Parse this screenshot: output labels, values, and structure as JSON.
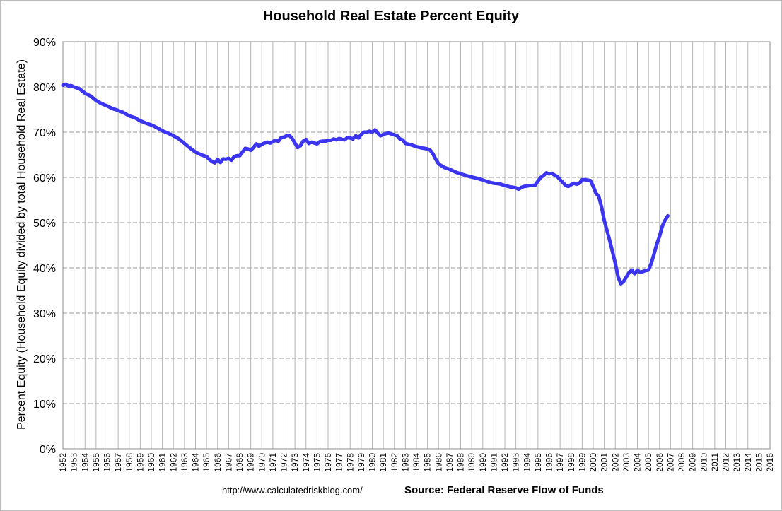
{
  "chart_data": {
    "type": "line",
    "title": "Household Real Estate Percent Equity",
    "ylabel": "Percent Equity (Household Equity divided by total Household Real Estate)",
    "xlabel": "",
    "ylim": [
      0,
      90
    ],
    "xlim": [
      1952,
      2016
    ],
    "y_ticks": [
      "0%",
      "10%",
      "20%",
      "30%",
      "40%",
      "50%",
      "60%",
      "70%",
      "80%",
      "90%"
    ],
    "x_ticks": [
      "1952",
      "1953",
      "1954",
      "1955",
      "1956",
      "1957",
      "1958",
      "1959",
      "1960",
      "1961",
      "1962",
      "1963",
      "1964",
      "1965",
      "1966",
      "1967",
      "1968",
      "1969",
      "1970",
      "1971",
      "1972",
      "1973",
      "1974",
      "1975",
      "1976",
      "1977",
      "1978",
      "1979",
      "1980",
      "1981",
      "1982",
      "1983",
      "1984",
      "1985",
      "1986",
      "1987",
      "1988",
      "1989",
      "1990",
      "1991",
      "1992",
      "1993",
      "1994",
      "1995",
      "1996",
      "1997",
      "1998",
      "1999",
      "2000",
      "2001",
      "2002",
      "2003",
      "2004",
      "2005",
      "2006",
      "2007",
      "2008",
      "2009",
      "2010",
      "2011",
      "2012",
      "2013",
      "2014",
      "2015",
      "2016"
    ],
    "grid": "dashed",
    "series": [
      {
        "color": "#3b35f0",
        "points": [
          [
            1952.0,
            80.4
          ],
          [
            1952.25,
            80.6
          ],
          [
            1952.5,
            80.2
          ],
          [
            1952.75,
            80.3
          ],
          [
            1953.0,
            80.0
          ],
          [
            1953.5,
            79.6
          ],
          [
            1954.0,
            78.6
          ],
          [
            1954.5,
            78.0
          ],
          [
            1955.0,
            77.0
          ],
          [
            1955.5,
            76.3
          ],
          [
            1956.0,
            75.8
          ],
          [
            1956.5,
            75.2
          ],
          [
            1957.0,
            74.8
          ],
          [
            1957.5,
            74.3
          ],
          [
            1958.0,
            73.6
          ],
          [
            1958.5,
            73.2
          ],
          [
            1959.0,
            72.5
          ],
          [
            1959.5,
            72.0
          ],
          [
            1960.0,
            71.6
          ],
          [
            1960.5,
            71.0
          ],
          [
            1961.0,
            70.3
          ],
          [
            1961.5,
            69.8
          ],
          [
            1962.0,
            69.2
          ],
          [
            1962.5,
            68.5
          ],
          [
            1963.0,
            67.5
          ],
          [
            1963.5,
            66.5
          ],
          [
            1964.0,
            65.6
          ],
          [
            1964.5,
            65.0
          ],
          [
            1965.0,
            64.6
          ],
          [
            1965.25,
            64.0
          ],
          [
            1965.5,
            63.5
          ],
          [
            1965.75,
            63.2
          ],
          [
            1966.0,
            64.0
          ],
          [
            1966.25,
            63.3
          ],
          [
            1966.5,
            64.1
          ],
          [
            1966.75,
            64.0
          ],
          [
            1967.0,
            64.2
          ],
          [
            1967.25,
            63.8
          ],
          [
            1967.5,
            64.6
          ],
          [
            1967.75,
            64.8
          ],
          [
            1968.0,
            64.8
          ],
          [
            1968.25,
            65.6
          ],
          [
            1968.5,
            66.4
          ],
          [
            1968.75,
            66.3
          ],
          [
            1969.0,
            66.0
          ],
          [
            1969.25,
            66.6
          ],
          [
            1969.5,
            67.4
          ],
          [
            1969.75,
            66.9
          ],
          [
            1970.0,
            67.3
          ],
          [
            1970.25,
            67.6
          ],
          [
            1970.5,
            67.8
          ],
          [
            1970.75,
            67.6
          ],
          [
            1971.0,
            67.9
          ],
          [
            1971.25,
            68.2
          ],
          [
            1971.5,
            68.0
          ],
          [
            1971.75,
            68.8
          ],
          [
            1972.0,
            68.9
          ],
          [
            1972.25,
            69.2
          ],
          [
            1972.5,
            69.3
          ],
          [
            1972.75,
            68.6
          ],
          [
            1973.0,
            67.6
          ],
          [
            1973.25,
            66.6
          ],
          [
            1973.5,
            67.0
          ],
          [
            1973.75,
            68.0
          ],
          [
            1974.0,
            68.4
          ],
          [
            1974.25,
            67.5
          ],
          [
            1974.5,
            67.8
          ],
          [
            1974.75,
            67.6
          ],
          [
            1975.0,
            67.4
          ],
          [
            1975.25,
            67.9
          ],
          [
            1975.5,
            68.0
          ],
          [
            1975.75,
            68.0
          ],
          [
            1976.0,
            68.2
          ],
          [
            1976.25,
            68.2
          ],
          [
            1976.5,
            68.5
          ],
          [
            1976.75,
            68.3
          ],
          [
            1977.0,
            68.6
          ],
          [
            1977.25,
            68.4
          ],
          [
            1977.5,
            68.3
          ],
          [
            1977.75,
            68.8
          ],
          [
            1978.0,
            68.7
          ],
          [
            1978.25,
            68.5
          ],
          [
            1978.5,
            69.2
          ],
          [
            1978.75,
            68.7
          ],
          [
            1979.0,
            69.5
          ],
          [
            1979.25,
            70.0
          ],
          [
            1979.5,
            70.0
          ],
          [
            1979.75,
            70.2
          ],
          [
            1980.0,
            70.0
          ],
          [
            1980.25,
            70.5
          ],
          [
            1980.5,
            69.8
          ],
          [
            1980.75,
            69.2
          ],
          [
            1981.0,
            69.5
          ],
          [
            1981.25,
            69.7
          ],
          [
            1981.5,
            69.8
          ],
          [
            1981.75,
            69.6
          ],
          [
            1982.0,
            69.4
          ],
          [
            1982.25,
            69.2
          ],
          [
            1982.5,
            68.5
          ],
          [
            1982.75,
            68.3
          ],
          [
            1983.0,
            67.5
          ],
          [
            1983.5,
            67.2
          ],
          [
            1984.0,
            66.8
          ],
          [
            1984.5,
            66.5
          ],
          [
            1985.0,
            66.3
          ],
          [
            1985.25,
            66.0
          ],
          [
            1985.5,
            65.2
          ],
          [
            1985.75,
            64.0
          ],
          [
            1986.0,
            63.0
          ],
          [
            1986.5,
            62.2
          ],
          [
            1987.0,
            61.8
          ],
          [
            1987.5,
            61.2
          ],
          [
            1988.0,
            60.8
          ],
          [
            1988.5,
            60.4
          ],
          [
            1989.0,
            60.1
          ],
          [
            1989.5,
            59.8
          ],
          [
            1990.0,
            59.4
          ],
          [
            1990.5,
            59.0
          ],
          [
            1991.0,
            58.7
          ],
          [
            1991.5,
            58.6
          ],
          [
            1992.0,
            58.2
          ],
          [
            1992.5,
            57.9
          ],
          [
            1993.0,
            57.7
          ],
          [
            1993.25,
            57.4
          ],
          [
            1993.5,
            57.8
          ],
          [
            1993.75,
            58.0
          ],
          [
            1994.0,
            58.1
          ],
          [
            1994.25,
            58.2
          ],
          [
            1994.5,
            58.2
          ],
          [
            1994.75,
            58.3
          ],
          [
            1995.0,
            59.2
          ],
          [
            1995.25,
            60.0
          ],
          [
            1995.5,
            60.4
          ],
          [
            1995.75,
            61.0
          ],
          [
            1996.0,
            60.8
          ],
          [
            1996.25,
            60.9
          ],
          [
            1996.5,
            60.5
          ],
          [
            1996.75,
            60.2
          ],
          [
            1997.0,
            59.5
          ],
          [
            1997.25,
            58.9
          ],
          [
            1997.5,
            58.2
          ],
          [
            1997.75,
            58.0
          ],
          [
            1998.0,
            58.4
          ],
          [
            1998.25,
            58.7
          ],
          [
            1998.5,
            58.5
          ],
          [
            1998.75,
            58.7
          ],
          [
            1999.0,
            59.5
          ],
          [
            1999.25,
            59.5
          ],
          [
            1999.5,
            59.4
          ],
          [
            1999.75,
            59.3
          ],
          [
            2000.0,
            58.0
          ],
          [
            2000.25,
            56.5
          ],
          [
            2000.5,
            55.8
          ],
          [
            2000.75,
            53.5
          ],
          [
            2001.0,
            50.5
          ],
          [
            2001.5,
            46.0
          ],
          [
            2002.0,
            41.0
          ],
          [
            2002.25,
            38.0
          ],
          [
            2002.5,
            36.5
          ],
          [
            2002.75,
            37.0
          ],
          [
            2003.0,
            38.0
          ],
          [
            2003.25,
            39.0
          ],
          [
            2003.5,
            39.5
          ],
          [
            2003.75,
            38.7
          ],
          [
            2004.0,
            39.5
          ],
          [
            2004.25,
            39.0
          ],
          [
            2004.5,
            39.2
          ],
          [
            2004.75,
            39.4
          ],
          [
            2005.0,
            39.5
          ],
          [
            2005.25,
            41.0
          ],
          [
            2005.5,
            43.0
          ],
          [
            2005.75,
            45.2
          ],
          [
            2006.0,
            47.0
          ],
          [
            2006.25,
            49.2
          ],
          [
            2006.5,
            50.5
          ],
          [
            2006.75,
            51.5
          ]
        ]
      }
    ]
  },
  "footer": {
    "url": "http://www.calculatedriskblog.com/",
    "source": "Source: Federal Reserve Flow of Funds"
  }
}
